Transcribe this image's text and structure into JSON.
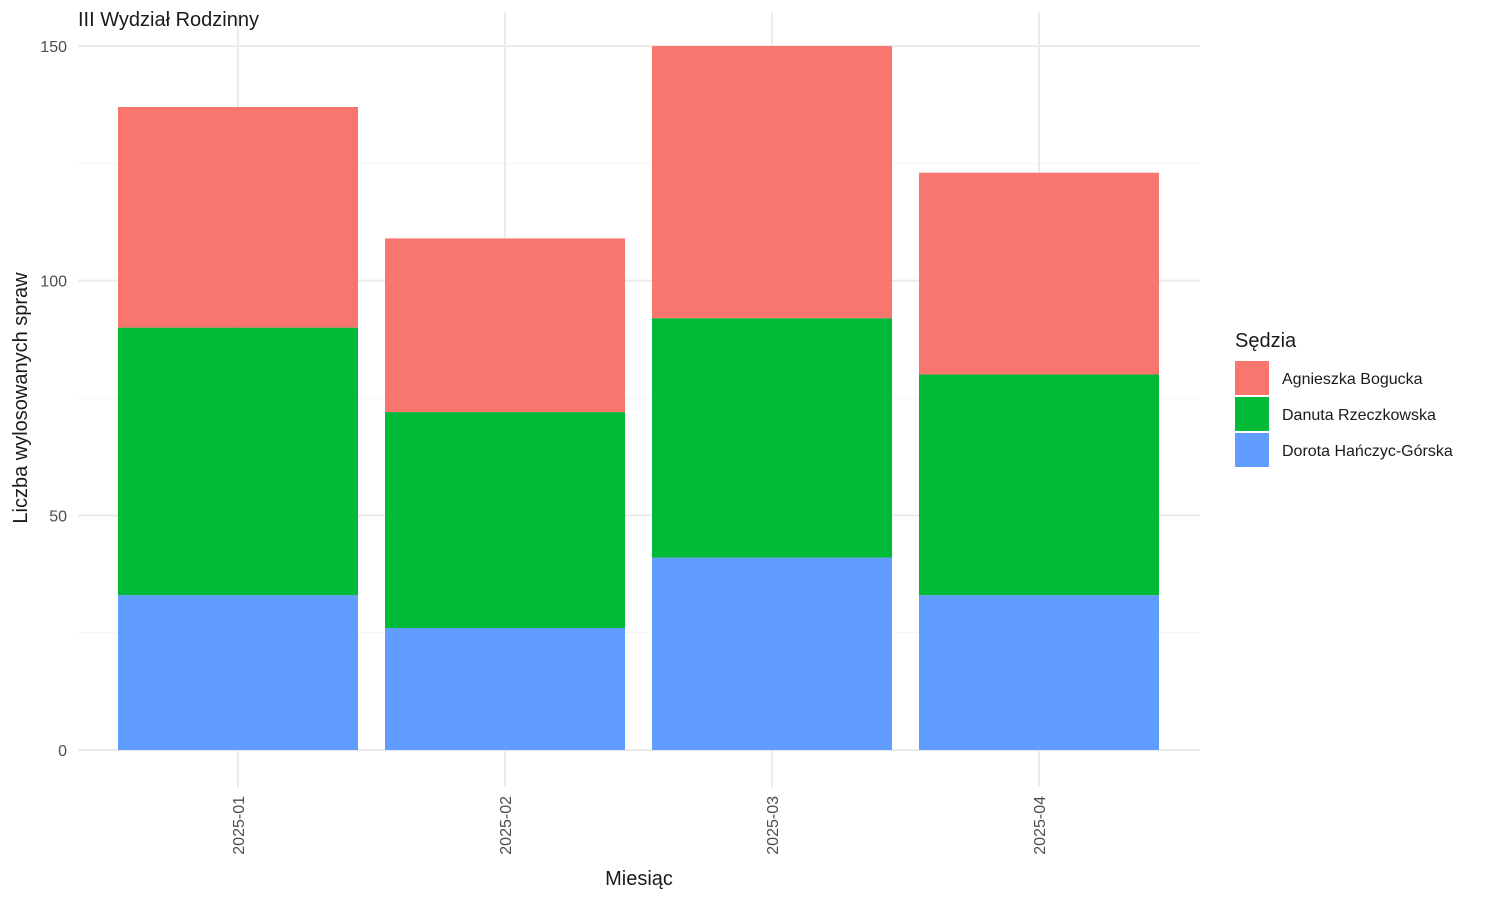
{
  "chart_data": {
    "type": "bar",
    "stacked": true,
    "title": "III Wydział Rodzinny",
    "xlabel": "Miesiąc",
    "ylabel": "Liczba wylosowanych spraw",
    "categories": [
      "2025-01",
      "2025-02",
      "2025-03",
      "2025-04"
    ],
    "ylim": [
      0,
      150
    ],
    "yticks": [
      0,
      50,
      100,
      150
    ],
    "grid": true,
    "legend": {
      "title": "Sędzia",
      "position": "right"
    },
    "series": [
      {
        "name": "Dorota Hańczyc-Górska",
        "color": "#619CFF",
        "values": [
          33,
          26,
          41,
          33
        ]
      },
      {
        "name": "Danuta Rzeczkowska",
        "color": "#00BA38",
        "values": [
          57,
          46,
          51,
          47
        ]
      },
      {
        "name": "Agnieszka Bogucka",
        "color": "#F8766D",
        "values": [
          47,
          37,
          58,
          43
        ]
      }
    ],
    "legend_order": [
      "Agnieszka Bogucka",
      "Danuta Rzeczkowska",
      "Dorota Hańczyc-Górska"
    ]
  }
}
